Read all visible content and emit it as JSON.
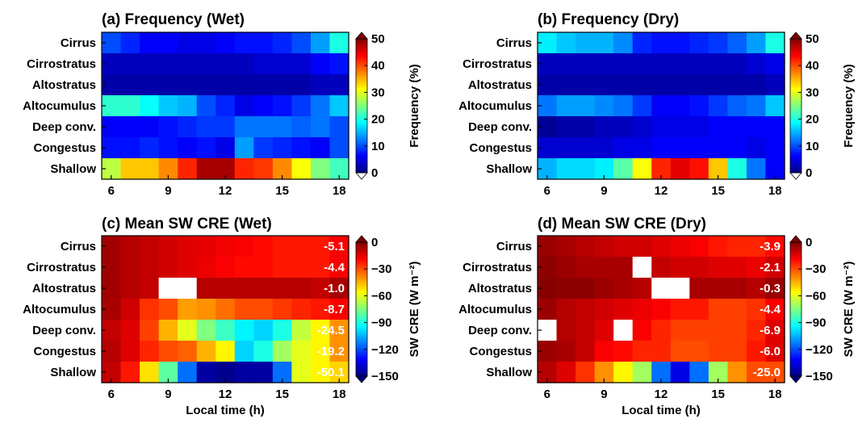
{
  "chart_data": [
    {
      "type": "heatmap",
      "title": "(a) Frequency (Wet)",
      "rows": [
        "Cirrus",
        "Cirrostratus",
        "Altostratus",
        "Altocumulus",
        "Deep conv.",
        "Congestus",
        "Shallow"
      ],
      "x": [
        6,
        7,
        8,
        9,
        10,
        11,
        12,
        13,
        14,
        15,
        16,
        17,
        18
      ],
      "xticks": [
        "6",
        "9",
        "12",
        "15",
        "18"
      ],
      "xlabel": "",
      "values": [
        [
          10,
          8,
          6,
          6,
          5,
          5,
          6,
          7,
          7,
          8,
          10,
          14,
          20
        ],
        [
          3,
          3,
          3,
          3,
          3,
          3,
          3,
          3,
          4,
          4,
          4,
          6,
          7
        ],
        [
          2,
          2,
          2,
          2,
          2,
          2,
          2,
          2,
          2,
          2,
          2,
          3,
          3
        ],
        [
          21,
          21,
          19,
          16,
          15,
          10,
          8,
          5,
          6,
          7,
          9,
          12,
          16
        ],
        [
          6,
          6,
          6,
          7,
          8,
          9,
          9,
          12,
          12,
          12,
          11,
          12,
          10
        ],
        [
          7,
          7,
          8,
          7,
          6,
          7,
          5,
          14,
          9,
          8,
          7,
          6,
          10
        ],
        [
          28,
          34,
          34,
          37,
          42,
          48,
          48,
          42,
          41,
          37,
          31,
          25,
          22
        ]
      ],
      "colorbar": {
        "label": "Frequency (%)",
        "ticks": [
          "0",
          "10",
          "20",
          "30",
          "40",
          "50"
        ],
        "range": [
          0,
          50
        ]
      },
      "annotations": []
    },
    {
      "type": "heatmap",
      "title": "(b) Frequency (Dry)",
      "rows": [
        "Cirrus",
        "Cirrostratus",
        "Altostratus",
        "Altocumulus",
        "Deep conv.",
        "Congestus",
        "Shallow"
      ],
      "x": [
        6,
        7,
        8,
        9,
        10,
        11,
        12,
        13,
        14,
        15,
        16,
        17,
        18
      ],
      "xticks": [
        "6",
        "9",
        "12",
        "15",
        "18"
      ],
      "xlabel": "",
      "values": [
        [
          18,
          16,
          15,
          15,
          13,
          8,
          7,
          7,
          8,
          9,
          11,
          14,
          20
        ],
        [
          3,
          3,
          3,
          3,
          3,
          3,
          3,
          3,
          3,
          3,
          3,
          4,
          5
        ],
        [
          2,
          2,
          2,
          2,
          2,
          2,
          2,
          2,
          2,
          2,
          2,
          2,
          3
        ],
        [
          12,
          14,
          14,
          13,
          12,
          9,
          6,
          6,
          7,
          9,
          11,
          12,
          16
        ],
        [
          1,
          2,
          2,
          3,
          3,
          4,
          5,
          5,
          5,
          6,
          6,
          6,
          6
        ],
        [
          4,
          4,
          4,
          4,
          5,
          5,
          6,
          6,
          6,
          6,
          6,
          5,
          6
        ],
        [
          15,
          17,
          17,
          18,
          23,
          31,
          42,
          45,
          43,
          34,
          20,
          12,
          6
        ]
      ],
      "colorbar": {
        "label": "Frequency (%)",
        "ticks": [
          "0",
          "10",
          "20",
          "30",
          "40",
          "50"
        ],
        "range": [
          0,
          50
        ]
      },
      "annotations": []
    },
    {
      "type": "heatmap",
      "title": "(c) Mean SW CRE (Wet)",
      "rows": [
        "Cirrus",
        "Cirrostratus",
        "Altostratus",
        "Altocumulus",
        "Deep conv.",
        "Congestus",
        "Shallow"
      ],
      "x": [
        6,
        7,
        8,
        9,
        10,
        11,
        12,
        13,
        14,
        15,
        16,
        17,
        18
      ],
      "xticks": [
        "6",
        "9",
        "12",
        "15",
        "18"
      ],
      "xlabel": "Local time (h)",
      "values": [
        [
          -5,
          -8,
          -10,
          -12,
          -14,
          -15,
          -17,
          -18,
          -20,
          -22,
          -22,
          -22,
          -18
        ],
        [
          -5,
          -8,
          -10,
          -12,
          -14,
          -16,
          -18,
          -20,
          -20,
          -22,
          -22,
          -22,
          -18
        ],
        [
          -5,
          -8,
          -10,
          null,
          null,
          -8,
          -8,
          -8,
          -8,
          -8,
          -8,
          -10,
          -6
        ],
        [
          -6,
          -12,
          -26,
          -30,
          -42,
          -40,
          -35,
          -30,
          -30,
          -27,
          -24,
          -22,
          -18
        ],
        [
          -10,
          -14,
          -28,
          -45,
          -60,
          -75,
          -85,
          -95,
          -100,
          -90,
          -65,
          -55,
          -40
        ],
        [
          -8,
          -14,
          -24,
          -30,
          -33,
          -45,
          -55,
          -100,
          -90,
          -70,
          -60,
          -55,
          -40
        ],
        [
          -10,
          -22,
          -52,
          -80,
          -115,
          -145,
          -148,
          -145,
          -145,
          -115,
          -60,
          -55,
          -50
        ]
      ],
      "colorbar": {
        "label": "SW CRE (W m⁻²)",
        "ticks": [
          "0",
          "−30",
          "−60",
          "−90",
          "−120",
          "−150"
        ],
        "range": [
          -150,
          0
        ]
      },
      "annotations": [
        "-5.1",
        "-4.4",
        "-1.0",
        "-8.7",
        "-24.5",
        "-19.2",
        "-50.1"
      ]
    },
    {
      "type": "heatmap",
      "title": "(d) Mean SW CRE (Dry)",
      "rows": [
        "Cirrus",
        "Cirrostratus",
        "Altostratus",
        "Altocumulus",
        "Deep conv.",
        "Congestus",
        "Shallow"
      ],
      "x": [
        6,
        7,
        8,
        9,
        10,
        11,
        12,
        13,
        14,
        15,
        16,
        17,
        18
      ],
      "xticks": [
        "6",
        "9",
        "12",
        "15",
        "18"
      ],
      "xlabel": "Local time (h)",
      "values": [
        [
          -4,
          -6,
          -8,
          -10,
          -12,
          -12,
          -14,
          -16,
          -18,
          -22,
          -24,
          -24,
          -20
        ],
        [
          -2,
          -4,
          -6,
          -6,
          -6,
          null,
          -10,
          -12,
          -12,
          -14,
          -14,
          -16,
          -12
        ],
        [
          -1,
          -2,
          -2,
          -4,
          -6,
          -8,
          null,
          null,
          -6,
          -6,
          -6,
          -8,
          -4
        ],
        [
          -4,
          -8,
          -10,
          -12,
          -14,
          -16,
          -18,
          -22,
          -22,
          -28,
          -28,
          -26,
          -18
        ],
        [
          null,
          -8,
          -10,
          -14,
          null,
          -18,
          -24,
          -28,
          -28,
          -28,
          -28,
          -24,
          -14
        ],
        [
          -4,
          -6,
          -10,
          -18,
          -20,
          -24,
          -24,
          -30,
          -30,
          -28,
          -28,
          -22,
          -14
        ],
        [
          -8,
          -14,
          -26,
          -40,
          -55,
          -70,
          -115,
          -135,
          -115,
          -70,
          -40,
          -30,
          -30
        ]
      ],
      "colorbar": {
        "label": "SW CRE (W m⁻²)",
        "ticks": [
          "0",
          "−30",
          "−60",
          "−90",
          "−120",
          "−150"
        ],
        "range": [
          -150,
          0
        ]
      },
      "annotations": [
        "-3.9",
        "-2.1",
        "-0.3",
        "-4.4",
        "-6.9",
        "-6.0",
        "-25.0"
      ]
    }
  ]
}
